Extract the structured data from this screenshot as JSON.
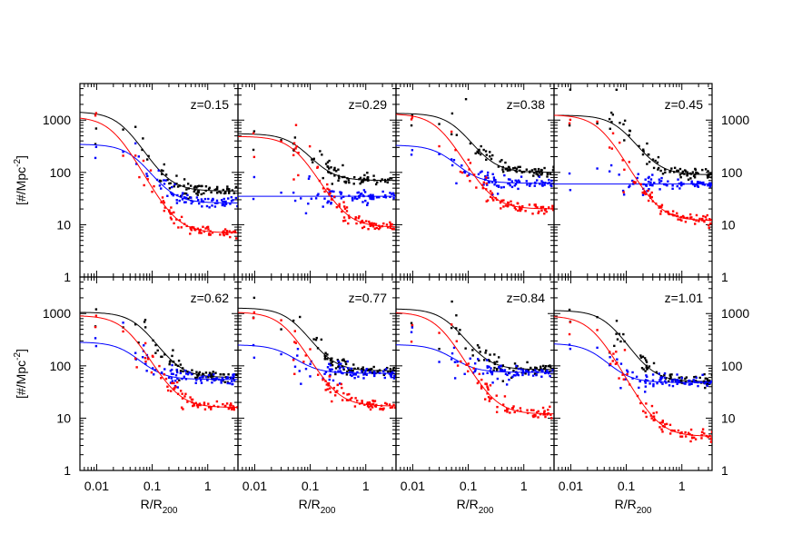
{
  "colors": {
    "all": "#000000",
    "blue": "#0000ff",
    "red": "#ff0000"
  },
  "axes": {
    "xlabel_main": "R/R",
    "xlabel_sub": "200",
    "ylabel_main": "[#/Mpc",
    "ylabel_sup": "-2",
    "ylabel_end": "]",
    "xticks": [
      "0.01",
      "0.1",
      "1"
    ],
    "yticks": [
      "1",
      "10",
      "100",
      "1000"
    ]
  },
  "chart_data": [
    {
      "type": "scatter",
      "title": "z=0.15",
      "xscale": "log",
      "yscale": "log",
      "xlim": [
        0.005,
        3.5
      ],
      "ylim": [
        1,
        5000
      ],
      "series": [
        {
          "color": "#000000",
          "fit": {
            "A": 1400,
            "rc": 0.03,
            "bg": 44
          }
        },
        {
          "color": "#0000ff",
          "fit": {
            "A": 320,
            "rc": 0.05,
            "bg": 26
          }
        },
        {
          "color": "#ff0000",
          "fit": {
            "A": 1150,
            "rc": 0.02,
            "bg": 7
          }
        }
      ]
    },
    {
      "type": "scatter",
      "title": "z=0.29",
      "xscale": "log",
      "yscale": "log",
      "xlim": [
        0.005,
        3.5
      ],
      "ylim": [
        1,
        5000
      ],
      "series": [
        {
          "color": "#000000",
          "fit": {
            "A": 480,
            "rc": 0.06,
            "bg": 70
          }
        },
        {
          "color": "#0000ff",
          "fit": {
            "A": 0,
            "rc": 0.05,
            "bg": 35
          }
        },
        {
          "color": "#ff0000",
          "fit": {
            "A": 480,
            "rc": 0.055,
            "bg": 9
          }
        }
      ]
    },
    {
      "type": "scatter",
      "title": "z=0.38",
      "xscale": "log",
      "yscale": "log",
      "xlim": [
        0.005,
        3.5
      ],
      "ylim": [
        1,
        5000
      ],
      "series": [
        {
          "color": "#000000",
          "fit": {
            "A": 1250,
            "rc": 0.06,
            "bg": 100
          }
        },
        {
          "color": "#0000ff",
          "fit": {
            "A": 270,
            "rc": 0.04,
            "bg": 62
          }
        },
        {
          "color": "#ff0000",
          "fit": {
            "A": 1300,
            "rc": 0.03,
            "bg": 20
          }
        }
      ]
    },
    {
      "type": "scatter",
      "title": "z=0.45",
      "xscale": "log",
      "yscale": "log",
      "xlim": [
        0.005,
        3.5
      ],
      "ylim": [
        1,
        5000
      ],
      "series": [
        {
          "color": "#000000",
          "fit": {
            "A": 1150,
            "rc": 0.08,
            "bg": 90
          }
        },
        {
          "color": "#0000ff",
          "fit": {
            "A": 0,
            "rc": 0.05,
            "bg": 60
          }
        },
        {
          "color": "#ff0000",
          "fit": {
            "A": 1250,
            "rc": 0.035,
            "bg": 12
          }
        }
      ]
    },
    {
      "type": "scatter",
      "title": "z=0.62",
      "xscale": "log",
      "yscale": "log",
      "xlim": [
        0.005,
        3.5
      ],
      "ylim": [
        1,
        5000
      ],
      "series": [
        {
          "color": "#000000",
          "fit": {
            "A": 1000,
            "rc": 0.06,
            "bg": 60
          }
        },
        {
          "color": "#0000ff",
          "fit": {
            "A": 230,
            "rc": 0.04,
            "bg": 55
          }
        },
        {
          "color": "#ff0000",
          "fit": {
            "A": 900,
            "rc": 0.035,
            "bg": 16
          }
        }
      ]
    },
    {
      "type": "scatter",
      "title": "z=0.77",
      "xscale": "log",
      "yscale": "log",
      "xlim": [
        0.005,
        3.5
      ],
      "ylim": [
        1,
        5000
      ],
      "series": [
        {
          "color": "#000000",
          "fit": {
            "A": 1200,
            "rc": 0.05,
            "bg": 80
          }
        },
        {
          "color": "#0000ff",
          "fit": {
            "A": 180,
            "rc": 0.04,
            "bg": 72
          }
        },
        {
          "color": "#ff0000",
          "fit": {
            "A": 1050,
            "rc": 0.035,
            "bg": 17
          }
        }
      ]
    },
    {
      "type": "scatter",
      "title": "z=0.84",
      "xscale": "log",
      "yscale": "log",
      "xlim": [
        0.005,
        3.5
      ],
      "ylim": [
        1,
        5000
      ],
      "series": [
        {
          "color": "#000000",
          "fit": {
            "A": 1150,
            "rc": 0.045,
            "bg": 85
          }
        },
        {
          "color": "#0000ff",
          "fit": {
            "A": 180,
            "rc": 0.04,
            "bg": 75
          }
        },
        {
          "color": "#ff0000",
          "fit": {
            "A": 1050,
            "rc": 0.03,
            "bg": 12
          }
        }
      ]
    },
    {
      "type": "scatter",
      "title": "z=1.01",
      "xscale": "log",
      "yscale": "log",
      "xlim": [
        0.005,
        3.5
      ],
      "ylim": [
        1,
        5000
      ],
      "series": [
        {
          "color": "#000000",
          "fit": {
            "A": 1100,
            "rc": 0.05,
            "bg": 50
          }
        },
        {
          "color": "#0000ff",
          "fit": {
            "A": 220,
            "rc": 0.03,
            "bg": 48
          }
        },
        {
          "color": "#ff0000",
          "fit": {
            "A": 900,
            "rc": 0.025,
            "bg": 4.5
          }
        }
      ]
    }
  ]
}
